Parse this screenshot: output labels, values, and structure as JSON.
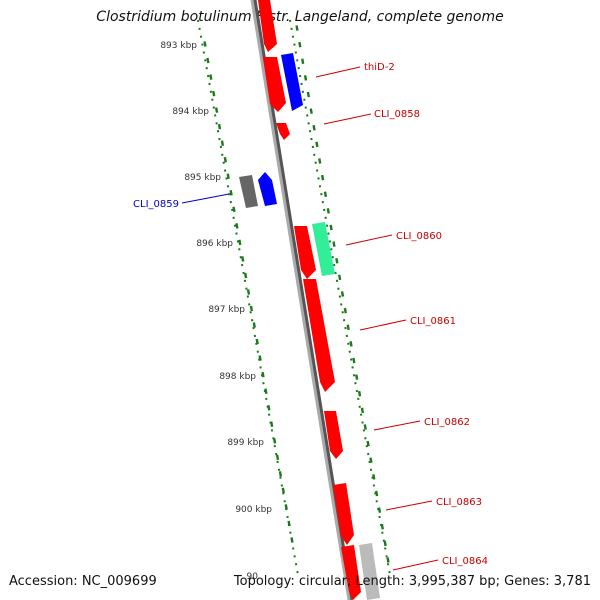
{
  "title": "Clostridium botulinum F str. Langeland, complete genome",
  "footer": {
    "accession": "Accession: NC_009699",
    "summary": "Topology: circular; Length: 3,995,387 bp; Genes: 3,781"
  },
  "colors": {
    "forward_gene": "#ff0000",
    "reverse_gene_highlight": "#0000ff",
    "label_blue": "#0000cc",
    "label_red": "#cc0000",
    "rna": "#33ee99",
    "pseudo": "#666666",
    "other": "#bbbbbb",
    "ticks": "#1a7a1a",
    "backbone": "#888888"
  },
  "scale_labels": [
    "893 kbp",
    "894 kbp",
    "895 kbp",
    "896 kbp",
    "897 kbp",
    "898 kbp",
    "899 kbp",
    "900 kbp",
    "90"
  ],
  "gene_labels": [
    {
      "text": "thiD-2",
      "color": "red"
    },
    {
      "text": "CLI_0858",
      "color": "red"
    },
    {
      "text": "CLI_0859",
      "color": "blue"
    },
    {
      "text": "CLI_0860",
      "color": "red"
    },
    {
      "text": "CLI_0861",
      "color": "red"
    },
    {
      "text": "CLI_0862",
      "color": "red"
    },
    {
      "text": "CLI_0863",
      "color": "red"
    },
    {
      "text": "CLI_0864",
      "color": "red"
    }
  ]
}
